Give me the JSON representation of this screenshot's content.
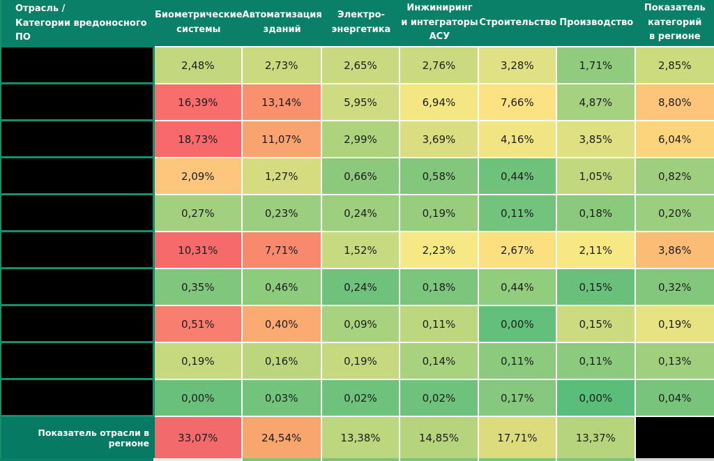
{
  "header": {
    "corner_lines": [
      "Отрасль /",
      "Категории вредоносного ПО"
    ],
    "columns": [
      {
        "lines": [
          "Биометрические",
          "системы"
        ]
      },
      {
        "lines": [
          "Автоматизация",
          "зданий"
        ]
      },
      {
        "lines": [
          "Электро-",
          "энергетика"
        ]
      },
      {
        "lines": [
          "Инжиниринг",
          "и интеграторы",
          "АСУ"
        ]
      },
      {
        "lines": [
          "Строительство"
        ]
      },
      {
        "lines": [
          "Производство"
        ]
      },
      {
        "lines": [
          "Показатель",
          "категорий",
          "в регионе"
        ]
      }
    ]
  },
  "rows": [
    {
      "label": "",
      "redacted": true,
      "cells": [
        {
          "text": "2,48%",
          "bg": "#c3d87e"
        },
        {
          "text": "2,73%",
          "bg": "#cbda7f"
        },
        {
          "text": "2,65%",
          "bg": "#c8d97f"
        },
        {
          "text": "2,76%",
          "bg": "#cbda7f"
        },
        {
          "text": "3,28%",
          "bg": "#dfe184"
        },
        {
          "text": "1,71%",
          "bg": "#90cb7e"
        },
        {
          "text": "2,85%",
          "bg": "#cddb7f"
        }
      ]
    },
    {
      "label": "",
      "redacted": true,
      "cells": [
        {
          "text": "16,39%",
          "bg": "#f76e6c"
        },
        {
          "text": "13,14%",
          "bg": "#f9916e"
        },
        {
          "text": "5,95%",
          "bg": "#cfdb80"
        },
        {
          "text": "6,94%",
          "bg": "#f5e684"
        },
        {
          "text": "7,66%",
          "bg": "#fde283"
        },
        {
          "text": "4,87%",
          "bg": "#a6d17e"
        },
        {
          "text": "8,80%",
          "bg": "#fcc57b"
        }
      ]
    },
    {
      "label": "",
      "redacted": true,
      "cells": [
        {
          "text": "18,73%",
          "bg": "#f8696b"
        },
        {
          "text": "11,07%",
          "bg": "#f9a470"
        },
        {
          "text": "2,99%",
          "bg": "#aed37d"
        },
        {
          "text": "3,69%",
          "bg": "#dade80"
        },
        {
          "text": "4,16%",
          "bg": "#f0e483"
        },
        {
          "text": "3,85%",
          "bg": "#dfe081"
        },
        {
          "text": "6,04%",
          "bg": "#fcd47c"
        }
      ]
    },
    {
      "label": "",
      "redacted": true,
      "cells": [
        {
          "text": "2,09%",
          "bg": "#fcc67d"
        },
        {
          "text": "1,27%",
          "bg": "#d5dc80"
        },
        {
          "text": "0,66%",
          "bg": "#8bc97d"
        },
        {
          "text": "0,58%",
          "bg": "#82c77c"
        },
        {
          "text": "0,44%",
          "bg": "#6fc27b"
        },
        {
          "text": "1,05%",
          "bg": "#c2d87e"
        },
        {
          "text": "0,82%",
          "bg": "#9ecf7e"
        }
      ]
    },
    {
      "label": "",
      "redacted": true,
      "cells": [
        {
          "text": "0,27%",
          "bg": "#a3d07e"
        },
        {
          "text": "0,23%",
          "bg": "#9bce7e"
        },
        {
          "text": "0,24%",
          "bg": "#9ecf7e"
        },
        {
          "text": "0,19%",
          "bg": "#98cd7e"
        },
        {
          "text": "0,11%",
          "bg": "#72c37c"
        },
        {
          "text": "0,18%",
          "bg": "#8bca7d"
        },
        {
          "text": "0,20%",
          "bg": "#9bce7e"
        }
      ]
    },
    {
      "label": "",
      "redacted": true,
      "cells": [
        {
          "text": "10,31%",
          "bg": "#f66a6c"
        },
        {
          "text": "7,71%",
          "bg": "#f9896d"
        },
        {
          "text": "1,52%",
          "bg": "#c8da7f"
        },
        {
          "text": "2,23%",
          "bg": "#f6e884"
        },
        {
          "text": "2,67%",
          "bg": "#fcdf7e"
        },
        {
          "text": "2,11%",
          "bg": "#f7e883"
        },
        {
          "text": "3,86%",
          "bg": "#fbbd75"
        }
      ]
    },
    {
      "label": "",
      "redacted": true,
      "cells": [
        {
          "text": "0,35%",
          "bg": "#80c67c"
        },
        {
          "text": "0,46%",
          "bg": "#8dcb7d"
        },
        {
          "text": "0,24%",
          "bg": "#6fc27b"
        },
        {
          "text": "0,18%",
          "bg": "#7cc57c"
        },
        {
          "text": "0,44%",
          "bg": "#92cc7d"
        },
        {
          "text": "0,15%",
          "bg": "#68c07b"
        },
        {
          "text": "0,32%",
          "bg": "#83c77c"
        }
      ]
    },
    {
      "label": "",
      "redacted": true,
      "cells": [
        {
          "text": "0,51%",
          "bg": "#f87f70"
        },
        {
          "text": "0,40%",
          "bg": "#fbaa72"
        },
        {
          "text": "0,09%",
          "bg": "#a8d27e"
        },
        {
          "text": "0,11%",
          "bg": "#bdd77e"
        },
        {
          "text": "0,00%",
          "bg": "#62c07c"
        },
        {
          "text": "0,15%",
          "bg": "#ccdb80"
        },
        {
          "text": "0,19%",
          "bg": "#e8e382"
        }
      ]
    },
    {
      "label": "",
      "redacted": true,
      "cells": [
        {
          "text": "0,19%",
          "bg": "#c6d97f"
        },
        {
          "text": "0,16%",
          "bg": "#bcd67e"
        },
        {
          "text": "0,19%",
          "bg": "#c6d97f"
        },
        {
          "text": "0,14%",
          "bg": "#a9d27e"
        },
        {
          "text": "0,11%",
          "bg": "#8cca7d"
        },
        {
          "text": "0,11%",
          "bg": "#8cca7d"
        },
        {
          "text": "0,13%",
          "bg": "#a0d07e"
        }
      ]
    },
    {
      "label": "",
      "redacted": true,
      "cells": [
        {
          "text": "0,00%",
          "bg": "#68c07b"
        },
        {
          "text": "0,03%",
          "bg": "#74c37c"
        },
        {
          "text": "0,02%",
          "bg": "#6fc27b"
        },
        {
          "text": "0,02%",
          "bg": "#6fc27b"
        },
        {
          "text": "0,17%",
          "bg": "#86c87d"
        },
        {
          "text": "0,00%",
          "bg": "#5abd7a"
        },
        {
          "text": "0,04%",
          "bg": "#78c47c"
        }
      ]
    }
  ],
  "footer": {
    "label": "Показатель отрасли в регионе",
    "cells": [
      {
        "text": "33,07%",
        "bg": "#f36a6d"
      },
      {
        "text": "24,54%",
        "bg": "#f9a56e"
      },
      {
        "text": "13,38%",
        "bg": "#bcd77d"
      },
      {
        "text": "14,85%",
        "bg": "#b6d47c"
      },
      {
        "text": "17,71%",
        "bg": "#dcdc7d"
      },
      {
        "text": "13,37%",
        "bg": "#b6d47c"
      },
      {
        "text": "",
        "bg": "#000000",
        "redacted": true
      }
    ]
  },
  "bottom_strip": [
    "#0a8069",
    "#efe8e6",
    "#7cc57c",
    "#7cc57c",
    "#7cc57c",
    "#7cc57c",
    "#7cc57c",
    "#d9d9d9"
  ],
  "colors": {
    "header_teal": "#0a8069",
    "footer_teal": "#077a64",
    "grid_teal": "#15906d",
    "gridline_white": "#ffffff",
    "redacted_black": "#000000",
    "cell_text": "#1c1c1c",
    "header_text": "#ffffff",
    "scale_low_green": "#63be7b",
    "scale_mid_yellow": "#ffeb84",
    "scale_high_red": "#f8696b"
  },
  "chart_data": {
    "type": "heatmap",
    "corner_label": "Отрасль / Категории вредоносного ПО",
    "columns": [
      "Биометрические системы",
      "Автоматизация зданий",
      "Электро-энергетика",
      "Инжиниринг и интеграторы АСУ",
      "Строительство",
      "Производство",
      "Показатель категорий в регионе"
    ],
    "row_labels_redacted": true,
    "row_count": 10,
    "values_percent": [
      [
        2.48,
        2.73,
        2.65,
        2.76,
        3.28,
        1.71,
        2.85
      ],
      [
        16.39,
        13.14,
        5.95,
        6.94,
        7.66,
        4.87,
        8.8
      ],
      [
        18.73,
        11.07,
        2.99,
        3.69,
        4.16,
        3.85,
        6.04
      ],
      [
        2.09,
        1.27,
        0.66,
        0.58,
        0.44,
        1.05,
        0.82
      ],
      [
        0.27,
        0.23,
        0.24,
        0.19,
        0.11,
        0.18,
        0.2
      ],
      [
        10.31,
        7.71,
        1.52,
        2.23,
        2.67,
        2.11,
        3.86
      ],
      [
        0.35,
        0.46,
        0.24,
        0.18,
        0.44,
        0.15,
        0.32
      ],
      [
        0.51,
        0.4,
        0.09,
        0.11,
        0.0,
        0.15,
        0.19
      ],
      [
        0.19,
        0.16,
        0.19,
        0.14,
        0.11,
        0.11,
        0.13
      ],
      [
        0.0,
        0.03,
        0.02,
        0.02,
        0.17,
        0.0,
        0.04
      ]
    ],
    "footer_label": "Показатель отрасли в регионе",
    "footer_values_percent": [
      33.07,
      24.54,
      13.38,
      14.85,
      17.71,
      13.37,
      null
    ],
    "legend": "green = low share, yellow = medium, red = high share",
    "grid": true
  }
}
